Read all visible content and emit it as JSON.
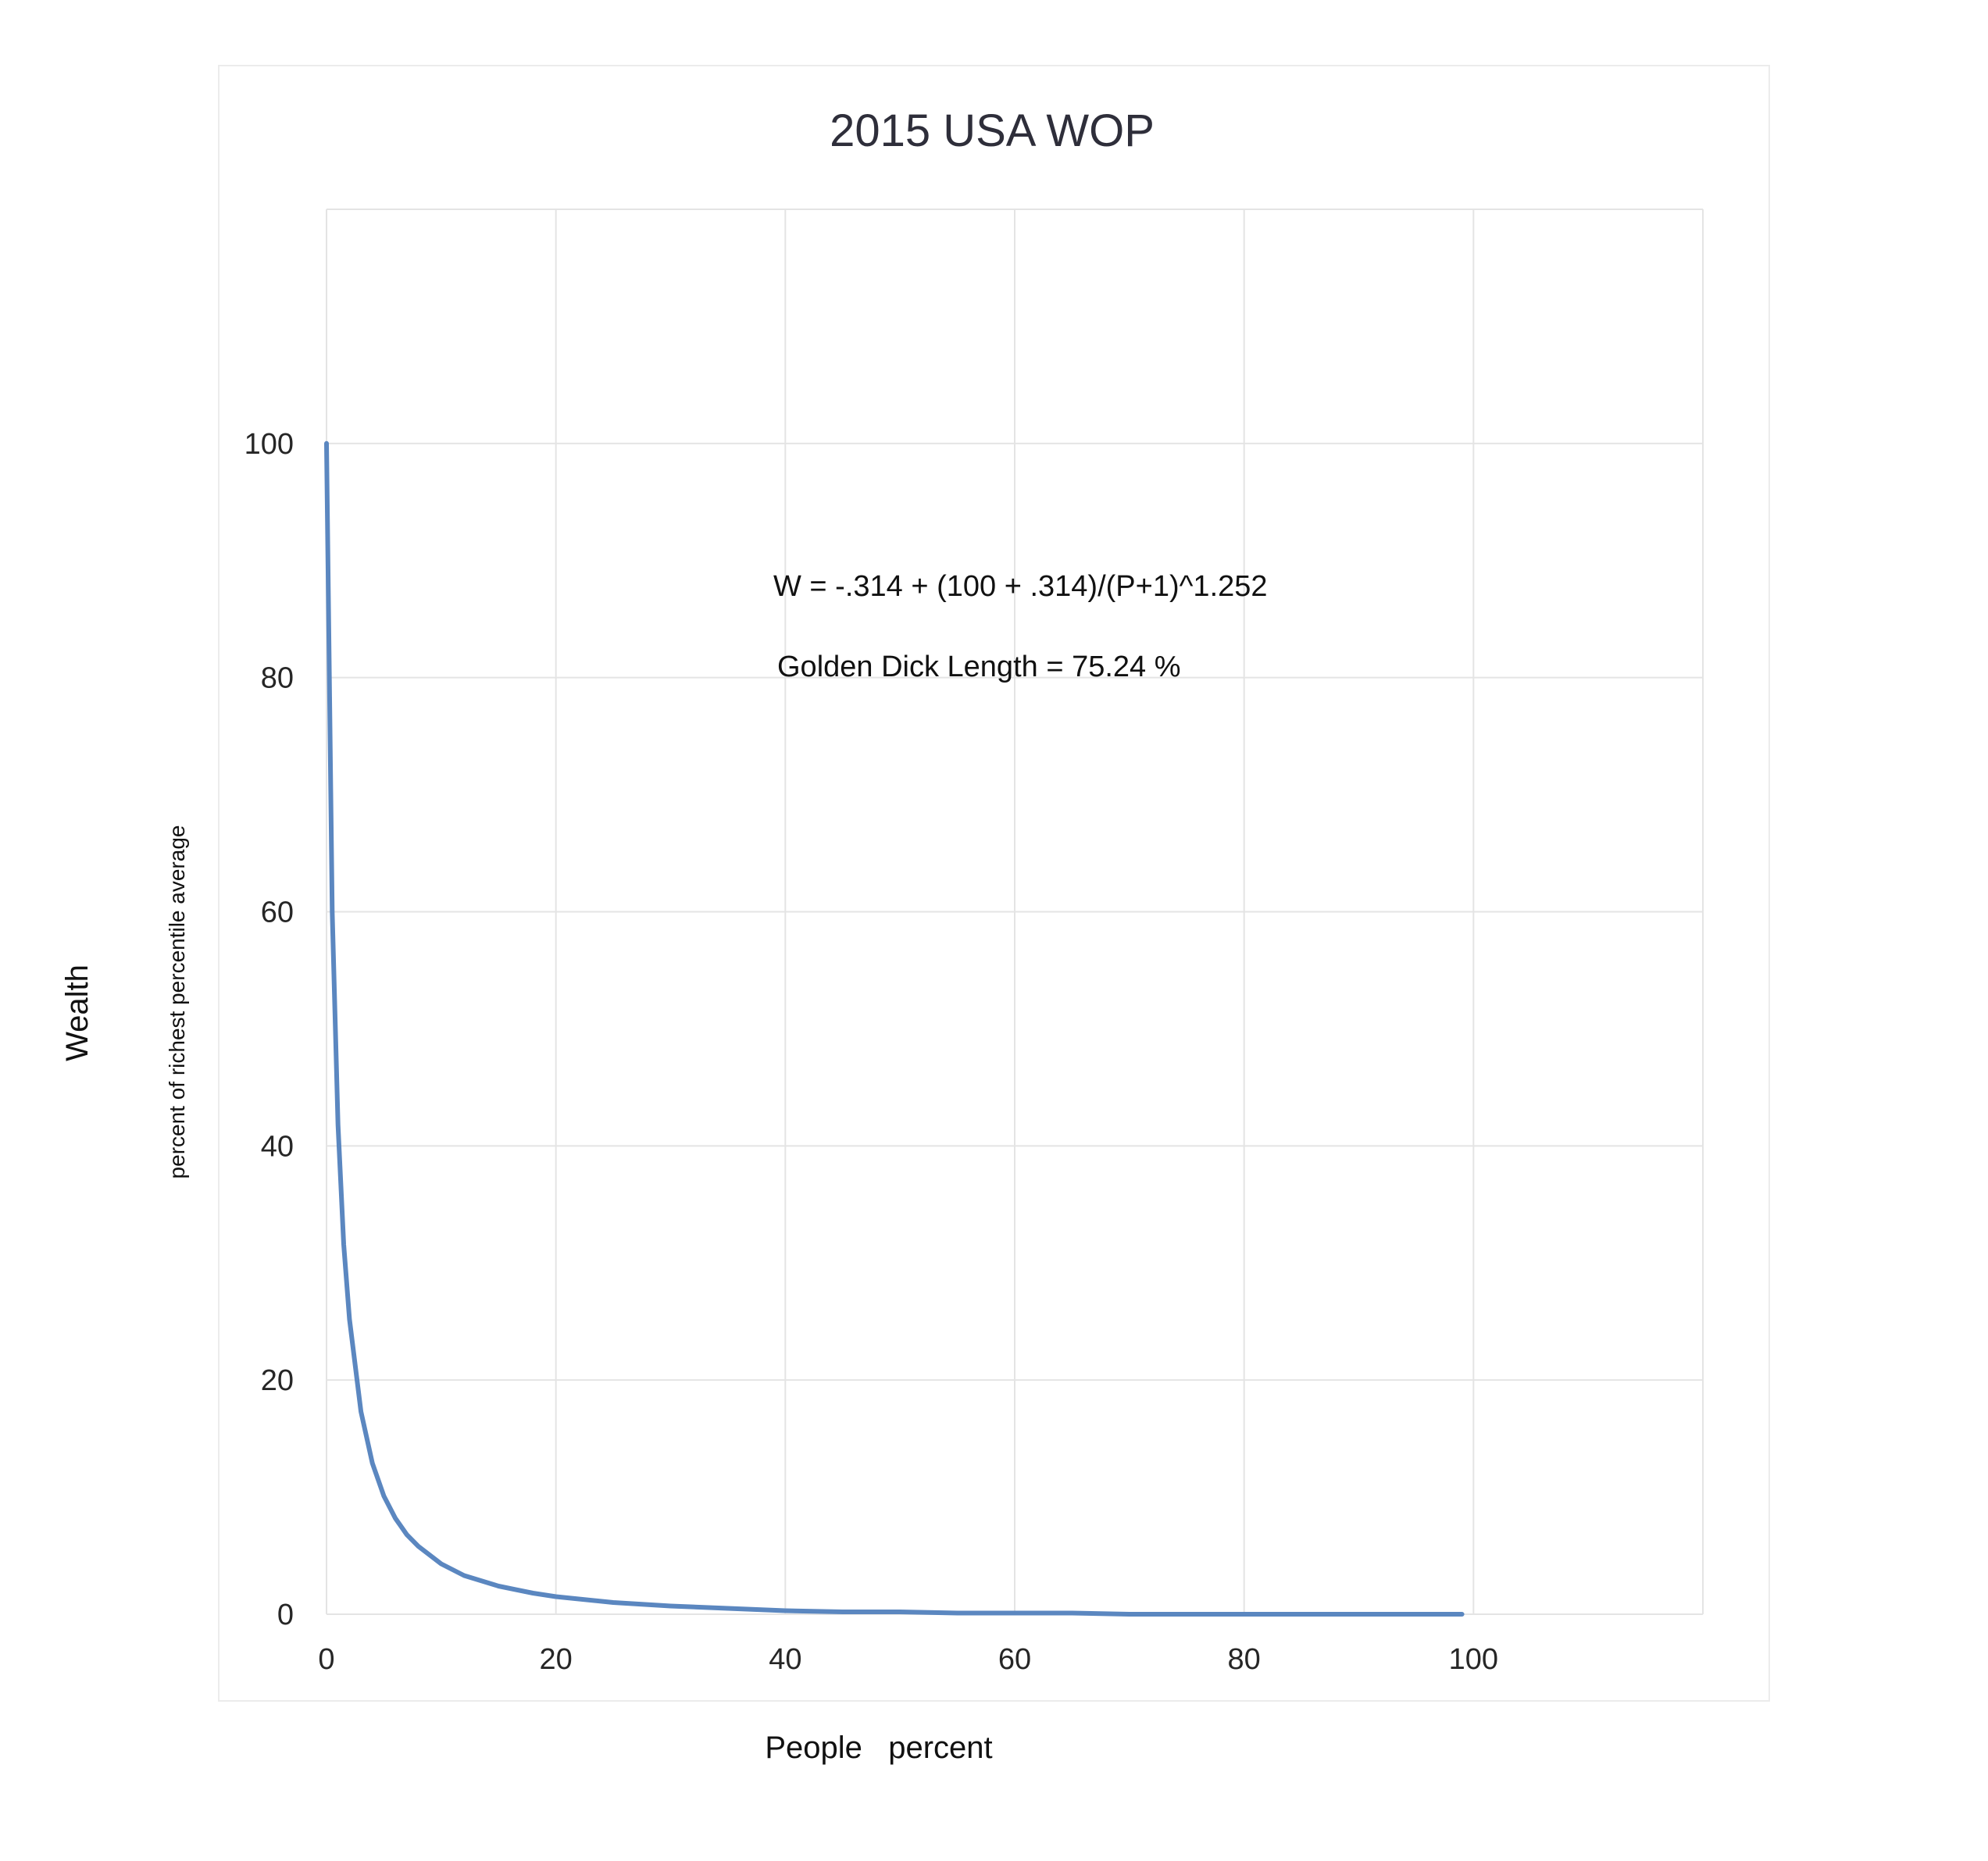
{
  "chart_data": {
    "type": "line",
    "title": "2015  USA  WOP",
    "xlabel": "People   percent",
    "ylabel": "Wealth",
    "ylabel_secondary": "percent of richest percentile average",
    "xlim": [
      0,
      120
    ],
    "ylim": [
      0,
      120
    ],
    "x_ticks": [
      0,
      20,
      40,
      60,
      80,
      100
    ],
    "y_ticks": [
      0,
      20,
      40,
      60,
      80,
      100
    ],
    "grid": true,
    "annotations": [
      "W = -.314 + (100 + .314)/(P+1)^1.252",
      "Golden Dick Length = 75.24 %"
    ],
    "series": [
      {
        "color": "#5b87c0",
        "x": [
          0,
          0.5,
          1,
          1.5,
          2,
          3,
          4,
          5,
          6,
          7,
          8,
          10,
          12,
          15,
          18,
          20,
          25,
          30,
          35,
          40,
          45,
          50,
          55,
          60,
          65,
          70,
          75,
          80,
          85,
          90,
          95,
          99
        ],
        "y": [
          100,
          60.0,
          41.8,
          31.6,
          25.2,
          17.3,
          12.9,
          10.1,
          8.2,
          6.8,
          5.8,
          4.3,
          3.3,
          2.4,
          1.8,
          1.5,
          1.0,
          0.7,
          0.5,
          0.3,
          0.2,
          0.2,
          0.1,
          0.1,
          0.1,
          0.0,
          0.0,
          0.0,
          0.0,
          0.0,
          0.0,
          0.0
        ]
      }
    ]
  }
}
